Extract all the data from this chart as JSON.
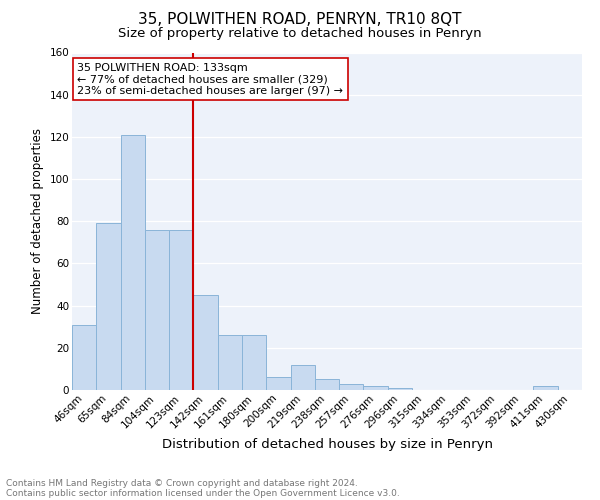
{
  "title": "35, POLWITHEN ROAD, PENRYN, TR10 8QT",
  "subtitle": "Size of property relative to detached houses in Penryn",
  "xlabel": "Distribution of detached houses by size in Penryn",
  "ylabel": "Number of detached properties",
  "categories": [
    "46sqm",
    "65sqm",
    "84sqm",
    "104sqm",
    "123sqm",
    "142sqm",
    "161sqm",
    "180sqm",
    "200sqm",
    "219sqm",
    "238sqm",
    "257sqm",
    "276sqm",
    "296sqm",
    "315sqm",
    "334sqm",
    "353sqm",
    "372sqm",
    "392sqm",
    "411sqm",
    "430sqm"
  ],
  "values": [
    31,
    79,
    121,
    76,
    76,
    45,
    26,
    26,
    6,
    12,
    5,
    3,
    2,
    1,
    0,
    0,
    0,
    0,
    0,
    2,
    0
  ],
  "bar_color": "#c8daf0",
  "bar_edge_color": "#8ab4d8",
  "vline_color": "#cc0000",
  "annotation_text": "35 POLWITHEN ROAD: 133sqm\n← 77% of detached houses are smaller (329)\n23% of semi-detached houses are larger (97) →",
  "annotation_box_color": "white",
  "annotation_box_edge": "#cc0000",
  "ylim": [
    0,
    160
  ],
  "yticks": [
    0,
    20,
    40,
    60,
    80,
    100,
    120,
    140,
    160
  ],
  "footer_line1": "Contains HM Land Registry data © Crown copyright and database right 2024.",
  "footer_line2": "Contains public sector information licensed under the Open Government Licence v3.0.",
  "bg_color": "#edf2fa",
  "grid_color": "white",
  "title_fontsize": 11,
  "subtitle_fontsize": 9.5,
  "xlabel_fontsize": 9.5,
  "ylabel_fontsize": 8.5,
  "tick_fontsize": 7.5,
  "annotation_fontsize": 8,
  "footer_fontsize": 6.5
}
